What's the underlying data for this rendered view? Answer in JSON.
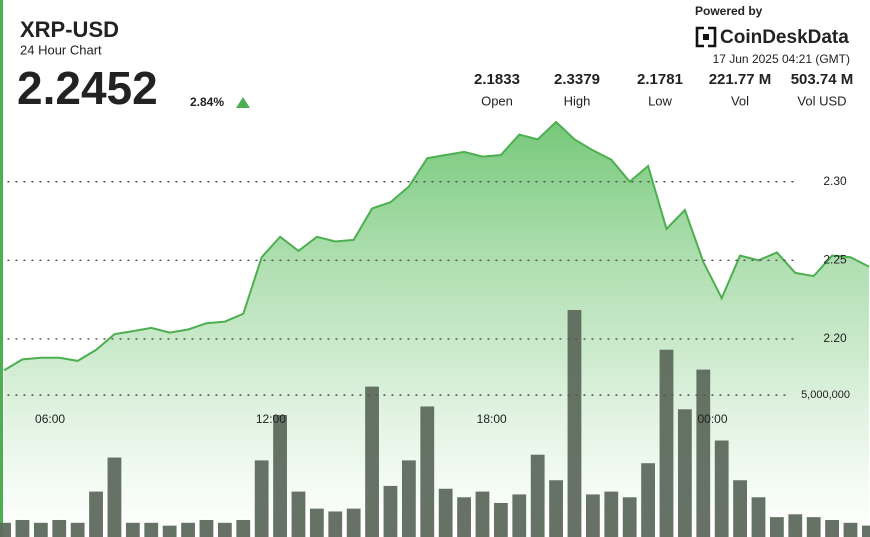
{
  "header": {
    "symbol": "XRP-USD",
    "subtitle": "24 Hour Chart",
    "price": "2.2452",
    "change": "2.84%",
    "powered_by": "Powered by",
    "brand": "CoinDeskData",
    "timestamp": "17 Jun 2025 04:21 (GMT)"
  },
  "stats": [
    {
      "value": "2.1833",
      "label": "Open"
    },
    {
      "value": "2.3379",
      "label": "High"
    },
    {
      "value": "2.1781",
      "label": "Low"
    },
    {
      "value": "221.77 M",
      "label": "Vol"
    },
    {
      "value": "503.74 M",
      "label": "Vol USD"
    }
  ],
  "chart_data": {
    "type": "area",
    "x": [
      4.75,
      5.25,
      5.75,
      6.25,
      6.75,
      7.25,
      7.75,
      8.25,
      8.75,
      9.25,
      9.75,
      10.25,
      10.75,
      11.25,
      11.75,
      12.25,
      12.75,
      13.25,
      13.75,
      14.25,
      14.75,
      15.25,
      15.75,
      16.25,
      16.75,
      17.25,
      17.75,
      18.25,
      18.75,
      19.25,
      19.75,
      20.25,
      20.75,
      21.25,
      21.75,
      22.25,
      22.75,
      23.25,
      23.75,
      24.25,
      24.75,
      25.25,
      25.75,
      26.25,
      26.75,
      27.25,
      27.75,
      28.25
    ],
    "series": [
      {
        "color": "#4caf50",
        "values": [
          2.18,
          2.187,
          2.188,
          2.188,
          2.186,
          2.193,
          2.203,
          2.205,
          2.207,
          2.204,
          2.206,
          2.21,
          2.211,
          2.216,
          2.252,
          2.265,
          2.256,
          2.265,
          2.262,
          2.263,
          2.283,
          2.287,
          2.297,
          2.315,
          2.317,
          2.319,
          2.316,
          2.317,
          2.33,
          2.327,
          2.338,
          2.327,
          2.32,
          2.314,
          2.3,
          2.31,
          2.27,
          2.282,
          2.249,
          2.226,
          2.253,
          2.25,
          2.255,
          2.242,
          2.24,
          2.253,
          2.252,
          2.246
        ]
      },
      {
        "type": "bar",
        "axis": "y2",
        "color": "#5d6a5d",
        "values": [
          500000,
          600000,
          500000,
          600000,
          500000,
          1600000,
          2800000,
          500000,
          500000,
          400000,
          500000,
          600000,
          500000,
          600000,
          2700000,
          4300000,
          1600000,
          1000000,
          900000,
          1000000,
          5300000,
          1800000,
          2700000,
          4600000,
          1700000,
          1400000,
          1600000,
          1200000,
          1500000,
          2900000,
          2000000,
          8000000,
          1500000,
          1600000,
          1400000,
          2600000,
          6600000,
          4500000,
          5900000,
          3400000,
          2000000,
          1400000,
          700000,
          800000,
          700000,
          600000,
          500000,
          400000
        ]
      }
    ],
    "xlim": [
      4.64,
      28.28
    ],
    "xticks": [
      {
        "value": 6,
        "label": "06:00"
      },
      {
        "value": 12,
        "label": "12:00"
      },
      {
        "value": 18,
        "label": "18:00"
      },
      {
        "value": 24,
        "label": "00:00"
      }
    ],
    "ylim": [
      2.074,
      2.352
    ],
    "yticks": [
      {
        "value": 2.2,
        "label": "2.20"
      },
      2.25,
      {
        "value": 2.3,
        "label": "2.30"
      }
    ],
    "y2lim": [
      0,
      15400000
    ],
    "y2ticks": [
      {
        "value": 5000000,
        "label": "5,000,000"
      }
    ],
    "grid": true
  }
}
